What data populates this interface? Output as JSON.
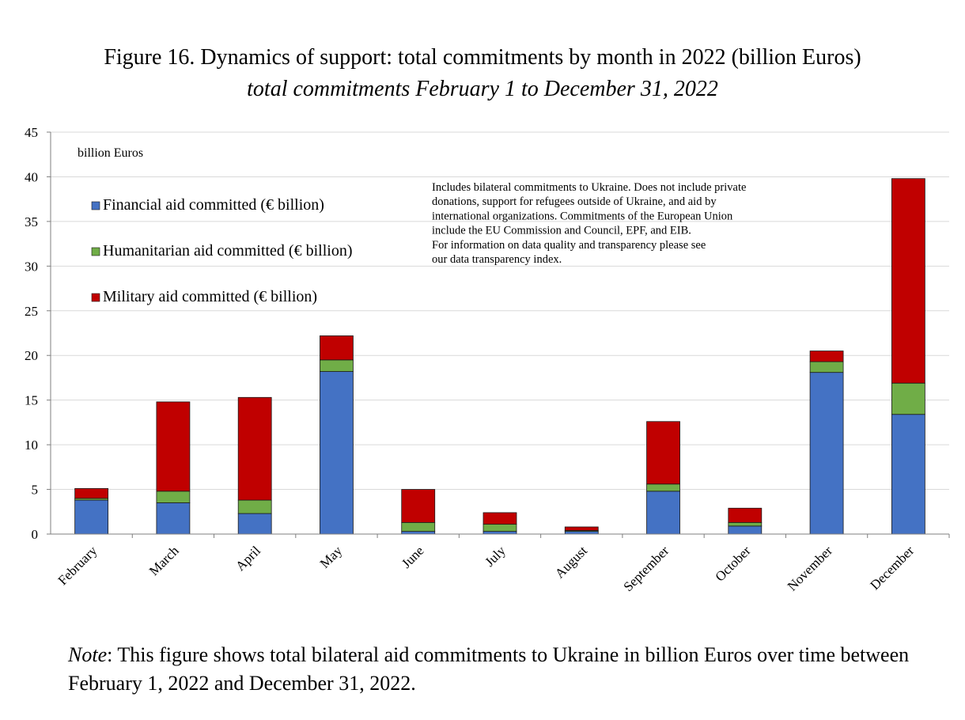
{
  "figure": {
    "title": "Figure 16. Dynamics of support: total commitments by month in 2022 (billion Euros)",
    "subtitle": "total commitments February 1 to December 31, 2022"
  },
  "note": {
    "label": "Note",
    "text": ": This figure shows total bilateral aid commitments to Ukraine in billion Euros over time between February 1, 2022 and December 31, 2022."
  },
  "colors": {
    "financial": "#4472C4",
    "humanitarian": "#70AD47",
    "military": "#C00000",
    "grid": "#d9d9d9",
    "axis": "#7f7f7f"
  },
  "chart_data": {
    "type": "bar",
    "stacked": true,
    "unit_label": "billion Euros",
    "categories": [
      "February",
      "March",
      "April",
      "May",
      "June",
      "July",
      "August",
      "September",
      "October",
      "November",
      "December"
    ],
    "series": [
      {
        "name": "Financial aid committed (€ billion)",
        "values": [
          3.8,
          3.5,
          2.3,
          18.2,
          0.3,
          0.3,
          0.3,
          4.8,
          0.9,
          18.1,
          13.4
        ]
      },
      {
        "name": "Humanitarian aid committed (€ billion)",
        "values": [
          0.2,
          1.3,
          1.5,
          1.3,
          1.0,
          0.8,
          0.1,
          0.8,
          0.4,
          1.2,
          3.5
        ]
      },
      {
        "name": "Military aid committed (€ billion)",
        "values": [
          1.1,
          10.0,
          11.5,
          2.7,
          3.7,
          1.3,
          0.4,
          7.0,
          1.6,
          1.2,
          22.9
        ]
      }
    ],
    "ylim": [
      0,
      45
    ],
    "yticks": [
      "0",
      "5",
      "10",
      "15",
      "20",
      "25",
      "30",
      "35",
      "40",
      "45"
    ],
    "grid": true,
    "legend_position": "top-left",
    "annotation": [
      "Includes bilateral commitments to Ukraine. Does not include private",
      "donations, support for refugees outside of Ukraine, and aid by",
      "international organizations. Commitments of the European Union",
      "include the EU Commission and Council, EPF, and EIB.",
      "For information on data quality and transparency please see",
      "our data transparency index."
    ]
  }
}
